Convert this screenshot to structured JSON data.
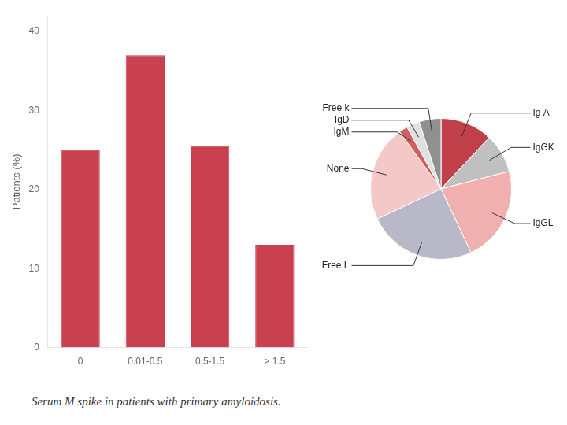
{
  "chart_data": [
    {
      "type": "bar",
      "categories": [
        "0",
        "0.01-0.5",
        "0.5-1.5",
        "> 1.5"
      ],
      "values": [
        25,
        37,
        25.5,
        13
      ],
      "color": "#c94050",
      "ylabel": "Patients (%)",
      "ylim": [
        0,
        42
      ],
      "yticks": [
        0,
        10,
        20,
        30,
        40
      ],
      "grid": false
    },
    {
      "type": "pie",
      "categories": [
        "Ig A",
        "IgGK",
        "IgGL",
        "Free L",
        "None",
        "IgM",
        "IgD",
        "Free k"
      ],
      "values": [
        12,
        9,
        22,
        25,
        22,
        2,
        3,
        5
      ],
      "colors": [
        "#c0404a",
        "#c0c0c0",
        "#f0b0b0",
        "#b8b8c8",
        "#f5c8c8",
        "#d06060",
        "#e0e0e0",
        "#909090"
      ]
    }
  ],
  "caption": "Serum M spike in patients with primary amyloidosis."
}
